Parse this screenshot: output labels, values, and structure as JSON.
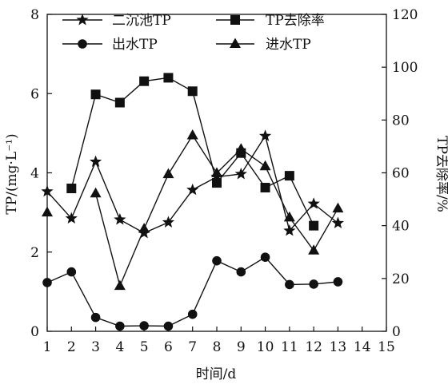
{
  "chart_data": {
    "type": "line",
    "x": [
      1,
      2,
      3,
      4,
      5,
      6,
      7,
      8,
      9,
      10,
      11,
      12,
      13
    ],
    "xlabel": "时间/d",
    "xlim": [
      1,
      15
    ],
    "xticks": [
      1,
      2,
      3,
      4,
      5,
      6,
      7,
      8,
      9,
      10,
      11,
      12,
      13,
      14,
      15
    ],
    "ylabel_left": "TP/(mg·L⁻¹)",
    "ylim_left": [
      0,
      8
    ],
    "yticks_left": [
      0,
      2,
      4,
      6,
      8
    ],
    "ylabel_right": "TP去除率/%",
    "ylim_right": [
      0,
      120
    ],
    "yticks_right": [
      0,
      20,
      40,
      60,
      80,
      100,
      120
    ],
    "grid": false,
    "legend_placement": "top",
    "series": [
      {
        "name": "二沉池TP",
        "axis": "left",
        "marker": "star",
        "values": [
          3.53,
          2.85,
          4.28,
          2.82,
          2.48,
          2.75,
          3.57,
          3.9,
          3.97,
          4.93,
          2.54,
          3.22,
          2.73
        ]
      },
      {
        "name": "TP去除率",
        "axis": "right",
        "marker": "square",
        "values": [
          null,
          54.1,
          89.7,
          86.6,
          94.7,
          96.0,
          90.9,
          56.2,
          67.5,
          54.4,
          58.9,
          40.0,
          null
        ]
      },
      {
        "name": "出水TP",
        "axis": "left",
        "marker": "circle",
        "values": [
          1.23,
          1.5,
          0.35,
          0.13,
          0.14,
          0.13,
          0.43,
          1.78,
          1.5,
          1.87,
          1.18,
          1.19,
          1.25
        ]
      },
      {
        "name": "进水TP",
        "axis": "right",
        "marker": "triangle",
        "values": [
          45.0,
          null,
          52.2,
          17.2,
          38.8,
          59.5,
          74.2,
          59.9,
          69.0,
          62.5,
          43.1,
          30.6,
          46.5
        ]
      }
    ]
  }
}
